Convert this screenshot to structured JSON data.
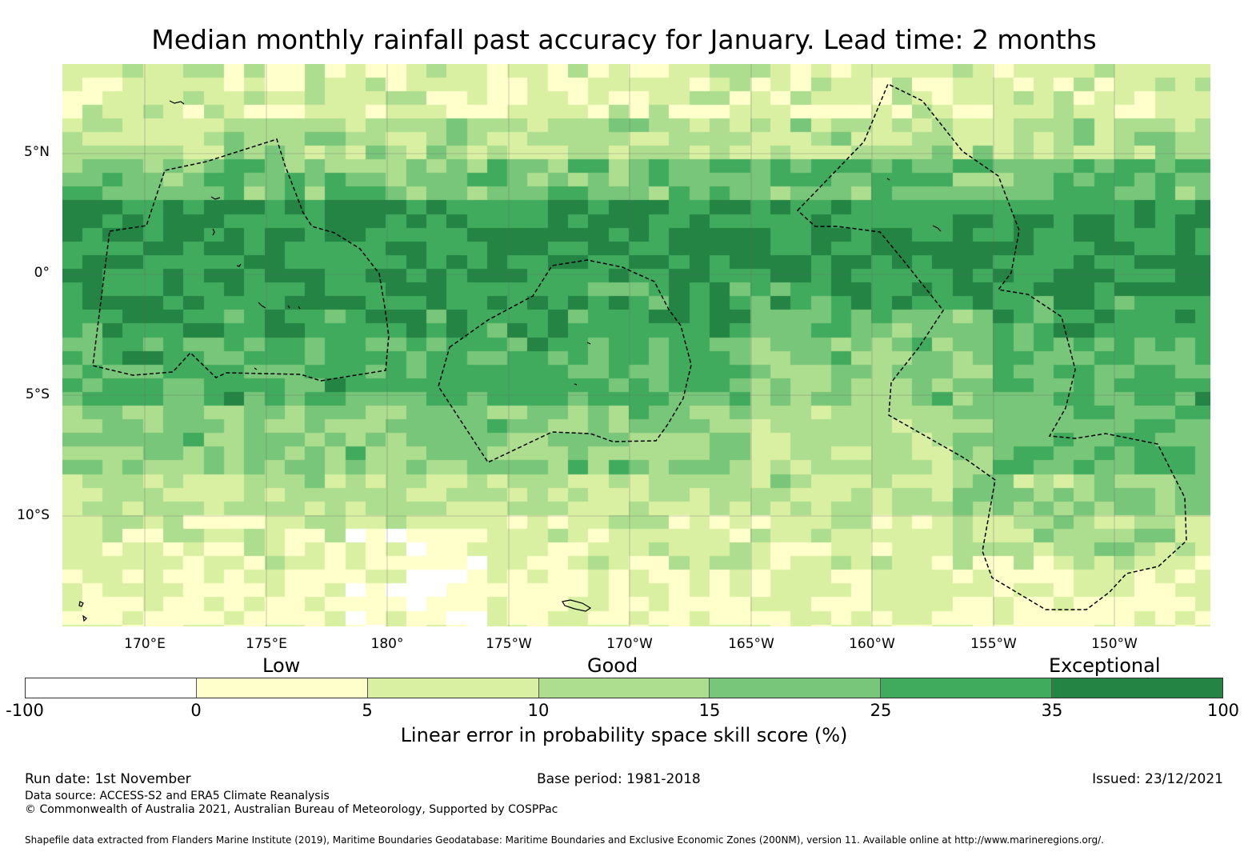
{
  "title": "Median monthly rainfall past accuracy for January. Lead time: 2 months",
  "map": {
    "lat_labels": [
      "5°N",
      "0°",
      "5°S",
      "10°S"
    ],
    "lon_labels": [
      "170°E",
      "175°E",
      "180°",
      "175°W",
      "170°W",
      "165°W",
      "160°W",
      "155°W",
      "150°W"
    ],
    "lat_range_deg": [
      -14.5,
      8.7
    ],
    "lon_range_deg_east": [
      166.6,
      213.9
    ]
  },
  "legend": {
    "categories": [
      "Low",
      "Good",
      "Exceptional"
    ],
    "ticks": [
      "-100",
      "0",
      "5",
      "10",
      "15",
      "25",
      "35",
      "100"
    ],
    "colors": [
      "#ffffff",
      "#ffffcc",
      "#d9f0a3",
      "#addd8e",
      "#78c679",
      "#41ab5d",
      "#238443"
    ],
    "title": "Linear error in probability space skill score (%)"
  },
  "footer": {
    "run_date": "Run date: 1st November",
    "base_period": "Base period: 1981-2018",
    "issued": "Issued: 23/12/2021",
    "data_source": "Data source: ACCESS-S2 and ERA5 Climate Reanalysis",
    "copyright": "© Commonwealth of Australia 2021, Australian Bureau of Meteorology, Supported by COSPPac",
    "shapefile": "Shapefile data extracted from Flanders Marine Institute (2019), Maritime Boundaries Geodatabase: Maritime Boundaries and Exclusive Economic Zones (200NM), version 11. Available online at http://www.marineregions.org/."
  }
}
